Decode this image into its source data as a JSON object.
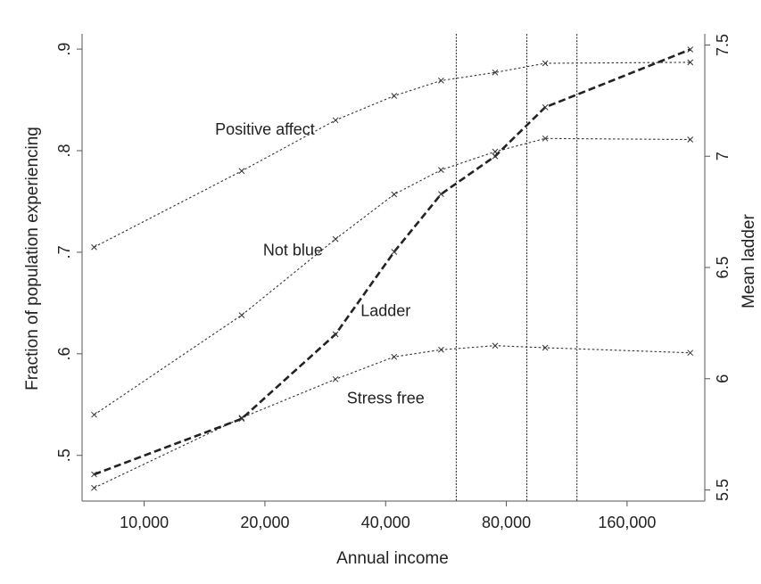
{
  "chart_data": {
    "type": "line",
    "xlabel": "Annual income",
    "ylabel": "Fraction of population experiencing",
    "ylabel_right": "Mean ladder",
    "x_scale": "log",
    "x": [
      7500,
      17500,
      30000,
      42000,
      55000,
      75000,
      100000,
      230000
    ],
    "x_ticks": [
      {
        "value": 10000,
        "label": "10,000"
      },
      {
        "value": 20000,
        "label": "20,000"
      },
      {
        "value": 40000,
        "label": "40,000"
      },
      {
        "value": 80000,
        "label": "80,000"
      },
      {
        "value": 160000,
        "label": "160,000"
      }
    ],
    "y_ticks": [
      {
        "value": 0.5,
        "label": ".5"
      },
      {
        "value": 0.6,
        "label": ".6"
      },
      {
        "value": 0.7,
        "label": ".7"
      },
      {
        "value": 0.8,
        "label": ".8"
      },
      {
        "value": 0.9,
        "label": ".9"
      }
    ],
    "y2_ticks": [
      {
        "value": 5.5,
        "label": "5.5"
      },
      {
        "value": 6,
        "label": "6"
      },
      {
        "value": 6.5,
        "label": "6.5"
      },
      {
        "value": 7,
        "label": "7"
      },
      {
        "value": 7.5,
        "label": "7.5"
      }
    ],
    "ylim": [
      0.455,
      0.915
    ],
    "y2lim": [
      5.45,
      7.55
    ],
    "vertical_lines_x": [
      60000,
      90000,
      120000
    ],
    "series": [
      {
        "name": "Positive affect",
        "axis": "left",
        "style": "dotted",
        "values": [
          0.705,
          0.78,
          0.83,
          0.854,
          0.869,
          0.877,
          0.886,
          0.887
        ]
      },
      {
        "name": "Not blue",
        "axis": "left",
        "style": "dotted",
        "values": [
          0.54,
          0.638,
          0.713,
          0.757,
          0.781,
          0.799,
          0.812,
          0.811
        ]
      },
      {
        "name": "Stress free",
        "axis": "left",
        "style": "dotted",
        "values": [
          0.468,
          0.537,
          0.575,
          0.597,
          0.604,
          0.608,
          0.606,
          0.601
        ]
      },
      {
        "name": "Ladder",
        "axis": "right",
        "style": "dashed",
        "values": [
          5.57,
          5.82,
          6.2,
          6.57,
          6.83,
          7.0,
          7.22,
          7.48
        ]
      }
    ],
    "series_label_anchors": [
      {
        "series": "Positive affect",
        "x": 20000,
        "y": 0.816
      },
      {
        "series": "Not blue",
        "x": 23500,
        "y": 0.697
      },
      {
        "series": "Ladder",
        "x": 40000,
        "y": 0.637
      },
      {
        "series": "Stress free",
        "x": 40000,
        "y": 0.551
      }
    ],
    "grid": false,
    "legend": "none"
  }
}
